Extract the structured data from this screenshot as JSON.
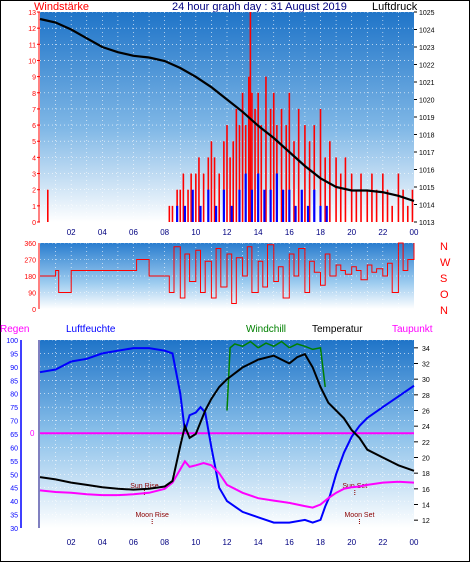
{
  "header": {
    "left_title": "Windstärke",
    "center_title": "24 hour graph day : 31 August 2019",
    "right_title": "Luftdruck"
  },
  "colors": {
    "wind": "#ff0000",
    "gust": "#0000ff",
    "pressure": "#000000",
    "direction": "#ff0000",
    "humidity": "#0000ff",
    "windchill": "#008000",
    "temperature": "#000000",
    "dewpoint": "#ff00ff",
    "rain_line": "#ff00ff",
    "axis_dark": "#000080",
    "sky_top": "#1f74c8",
    "sky_bottom": "#ffffff"
  },
  "time_ticks": [
    "02",
    "04",
    "06",
    "08",
    "10",
    "12",
    "14",
    "16",
    "18",
    "20",
    "22",
    "00"
  ],
  "chart_data": [
    {
      "type": "bar",
      "title": "24 hour graph day : 31 August 2019",
      "ylabel_left": "Windstärke",
      "ylabel_right": "Luftdruck",
      "ylim_left": [
        0,
        13
      ],
      "ylim_right": [
        1013,
        1025
      ],
      "y_left_ticks": [
        "0",
        "1",
        "2",
        "3",
        "4",
        "5",
        "6",
        "7",
        "8",
        "9",
        "10",
        "11",
        "12",
        "13"
      ],
      "y_right_ticks": [
        "1013",
        "1014",
        "1015",
        "1016",
        "1017",
        "1018",
        "1019",
        "1020",
        "1021",
        "1022",
        "1023",
        "1024",
        "1025"
      ],
      "x_range_hours": [
        0,
        24
      ],
      "series": [
        {
          "kind": "wind_speed_bars",
          "x": [
            0.5,
            8.3,
            8.5,
            8.8,
            9.0,
            9.2,
            9.5,
            9.7,
            10.0,
            10.2,
            10.5,
            10.8,
            11.0,
            11.2,
            11.5,
            11.8,
            12.0,
            12.2,
            12.4,
            12.6,
            12.8,
            13.0,
            13.2,
            13.4,
            13.5,
            13.6,
            13.8,
            14.0,
            14.2,
            14.5,
            14.8,
            15.0,
            15.2,
            15.5,
            15.8,
            16.0,
            16.3,
            16.6,
            17.0,
            17.3,
            17.6,
            18.0,
            18.3,
            18.6,
            19.0,
            19.3,
            19.6,
            20.0,
            20.3,
            20.6,
            21.0,
            21.3,
            21.6,
            22.0,
            22.3,
            22.6,
            23.0,
            23.3,
            23.6,
            23.9
          ],
          "values": [
            2,
            1,
            1,
            2,
            2,
            3,
            2,
            3,
            3,
            4,
            3,
            4,
            5,
            4,
            3,
            5,
            6,
            4,
            5,
            7,
            6,
            8,
            6,
            9,
            13,
            8,
            7,
            8,
            6,
            9,
            7,
            8,
            6,
            7,
            6,
            8,
            5,
            7,
            6,
            5,
            6,
            7,
            4,
            5,
            4,
            3,
            4,
            3,
            2,
            3,
            2,
            3,
            2,
            3,
            2,
            1,
            3,
            2,
            1,
            2
          ]
        },
        {
          "kind": "gust_bars",
          "x": [
            8.8,
            9.3,
            9.8,
            10.3,
            10.8,
            11.3,
            11.8,
            12.3,
            12.8,
            13.2,
            13.6,
            14.0,
            14.4,
            14.8,
            15.2,
            15.6,
            16.0,
            16.4,
            16.8,
            17.2,
            17.6,
            18.0,
            18.4
          ],
          "values": [
            1,
            1,
            2,
            1,
            2,
            1,
            2,
            1,
            2,
            3,
            2,
            3,
            2,
            2,
            3,
            2,
            2,
            1,
            2,
            1,
            2,
            1,
            1
          ]
        },
        {
          "kind": "pressure_line",
          "x": [
            0,
            1,
            2,
            3,
            4,
            5,
            6,
            7,
            8,
            9,
            10,
            11,
            12,
            13,
            14,
            15,
            16,
            17,
            18,
            19,
            20,
            21,
            22,
            23,
            24
          ],
          "values": [
            1024.6,
            1024.4,
            1024.0,
            1023.5,
            1023.0,
            1022.7,
            1022.5,
            1022.4,
            1022.2,
            1021.8,
            1021.3,
            1020.7,
            1020.0,
            1019.3,
            1018.5,
            1017.8,
            1017.0,
            1016.2,
            1015.5,
            1015.0,
            1014.8,
            1014.8,
            1014.7,
            1014.5,
            1014.2
          ]
        }
      ]
    },
    {
      "type": "line",
      "title": "",
      "ylabel_right": "N W S O N",
      "compass": [
        "N",
        "W",
        "S",
        "O",
        "N"
      ],
      "ylim": [
        0,
        360
      ],
      "y_ticks": [
        "0",
        "90",
        "180",
        "270",
        "360"
      ],
      "series": [
        {
          "kind": "wind_direction",
          "x": [
            0,
            1,
            1.2,
            2,
            3,
            4,
            5,
            6,
            6.2,
            7,
            8,
            8.3,
            8.6,
            9,
            9.3,
            9.6,
            10,
            10.3,
            10.6,
            11,
            11.3,
            11.6,
            12,
            12.3,
            12.6,
            13,
            13.3,
            13.6,
            14,
            14.3,
            14.6,
            15,
            15.3,
            15.6,
            16,
            16.3,
            16.6,
            17,
            17.3,
            17.6,
            18,
            18.3,
            18.6,
            19,
            19.3,
            19.6,
            20,
            20.3,
            20.6,
            21,
            21.3,
            21.6,
            22,
            22.3,
            22.6,
            23,
            23.3,
            23.6,
            24
          ],
          "values": [
            180,
            210,
            90,
            210,
            210,
            210,
            210,
            210,
            270,
            180,
            180,
            90,
            340,
            60,
            300,
            150,
            320,
            90,
            260,
            60,
            330,
            120,
            300,
            30,
            280,
            180,
            340,
            90,
            260,
            120,
            350,
            150,
            230,
            60,
            300,
            180,
            330,
            90,
            260,
            200,
            130,
            300,
            180,
            240,
            210,
            190,
            230,
            210,
            160,
            240,
            200,
            220,
            180,
            250,
            90,
            360,
            210,
            270,
            360
          ]
        }
      ]
    },
    {
      "type": "line",
      "title": "",
      "legend": [
        "Regen",
        "Luftfeuchte",
        "Windchill",
        "Temperatur",
        "Taupunkt"
      ],
      "ylim_left": [
        30,
        100
      ],
      "y_left_ticks": [
        "30",
        "35",
        "40",
        "45",
        "50",
        "55",
        "60",
        "65",
        "70",
        "75",
        "80",
        "85",
        "90",
        "95",
        "100"
      ],
      "ylim_right": [
        11,
        35
      ],
      "y_right_ticks": [
        "12",
        "14",
        "16",
        "18",
        "20",
        "22",
        "24",
        "26",
        "28",
        "30",
        "32",
        "34"
      ],
      "rain_value_label": "0",
      "rain_value": 0,
      "annotations": [
        {
          "text": "Sun Rise",
          "x": 6.7,
          "y_right": 16.1
        },
        {
          "text": "Moon Rise",
          "x": 7.2,
          "y_right": 12.4
        },
        {
          "text": "Sun Set",
          "x": 20.2,
          "y_right": 16.1
        },
        {
          "text": "Moon Set",
          "x": 20.5,
          "y_right": 12.4
        }
      ],
      "series": [
        {
          "name": "Luftfeuchte",
          "axis": "left",
          "x": [
            0,
            1,
            2,
            3,
            4,
            5,
            6,
            7,
            8,
            8.5,
            9,
            9.3,
            9.6,
            10,
            10.3,
            10.6,
            11,
            11.5,
            12,
            13,
            14,
            15,
            16,
            17,
            17.5,
            18,
            18.3,
            18.6,
            19,
            19.5,
            20,
            20.5,
            21,
            22,
            23,
            24
          ],
          "values": [
            88,
            89,
            92,
            93,
            95,
            96,
            97,
            97,
            96,
            95,
            80,
            66,
            72,
            73,
            75,
            73,
            60,
            45,
            40,
            36,
            34,
            32,
            32,
            33,
            32,
            33,
            38,
            42,
            50,
            58,
            64,
            68,
            71,
            75,
            79,
            83
          ]
        },
        {
          "name": "Temperatur",
          "axis": "right",
          "x": [
            0,
            1,
            2,
            3,
            4,
            5,
            6,
            7,
            8,
            8.5,
            9,
            9.3,
            9.6,
            10,
            10.3,
            10.6,
            11,
            11.5,
            12,
            13,
            14,
            15,
            16,
            16.5,
            17,
            17.5,
            18,
            18.5,
            19,
            19.5,
            20,
            20.5,
            21,
            22,
            23,
            24
          ],
          "values": [
            17.5,
            17.2,
            16.8,
            16.5,
            16.2,
            16.0,
            15.9,
            16.0,
            16.3,
            17.0,
            21.5,
            24.0,
            22.5,
            23.0,
            24.5,
            26.0,
            27.5,
            29.0,
            30.0,
            31.5,
            32.5,
            33.0,
            32.0,
            32.8,
            33.2,
            31.5,
            29.0,
            27.0,
            26.0,
            25.0,
            23.5,
            22.5,
            21.0,
            20.0,
            19.0,
            18.3
          ]
        },
        {
          "name": "Windchill",
          "axis": "right",
          "x": [
            12,
            12.2,
            12.5,
            13,
            13.5,
            14,
            14.5,
            15,
            15.5,
            16,
            16.5,
            17,
            17.5,
            18,
            18.3
          ],
          "values": [
            26,
            34,
            34.5,
            34.2,
            34.8,
            34.0,
            34.6,
            34.2,
            34.8,
            34.0,
            34.5,
            34.2,
            33.8,
            34.0,
            29
          ]
        },
        {
          "name": "Taupunkt",
          "axis": "right",
          "x": [
            0,
            1,
            2,
            3,
            4,
            5,
            6,
            7,
            8,
            8.5,
            9,
            9.3,
            9.6,
            10,
            10.5,
            11,
            11.5,
            12,
            13,
            14,
            15,
            16,
            17,
            17.5,
            18,
            18.5,
            19,
            19.5,
            20,
            20.5,
            21,
            22,
            23,
            24
          ],
          "values": [
            15.8,
            15.6,
            15.5,
            15.3,
            15.2,
            15.2,
            15.3,
            15.5,
            16.0,
            16.8,
            18.5,
            19.5,
            18.8,
            19.0,
            19.3,
            19.0,
            18.0,
            16.5,
            15.5,
            14.8,
            14.5,
            14.2,
            13.8,
            13.6,
            14.0,
            14.8,
            15.5,
            16.0,
            16.2,
            16.3,
            16.5,
            16.8,
            16.9,
            16.8
          ]
        }
      ]
    }
  ]
}
